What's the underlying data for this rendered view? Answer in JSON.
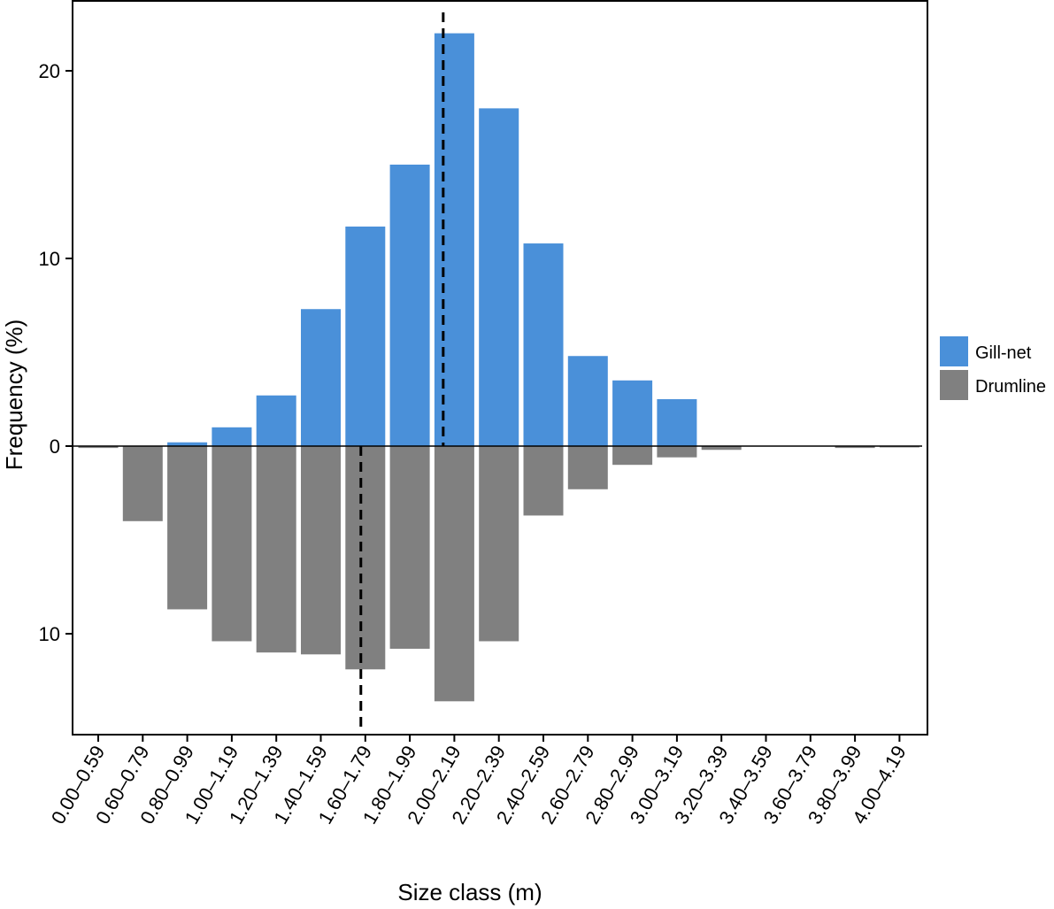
{
  "chart_data": {
    "type": "bar",
    "xlabel": "Size class (m)",
    "ylabel": "Frequency (%)",
    "categories": [
      "0.00–0.59",
      "0.60–0.79",
      "0.80–0.99",
      "1.00–1.19",
      "1.20–1.39",
      "1.40–1.59",
      "1.60–1.79",
      "1.80–1.99",
      "2.00–2.19",
      "2.20–2.39",
      "2.40–2.59",
      "2.60–2.79",
      "2.80–2.99",
      "3.00–3.19",
      "3.20–3.39",
      "3.40–3.59",
      "3.60–3.79",
      "3.80–3.99",
      "4.00–4.19"
    ],
    "series": [
      {
        "name": "Gill-net",
        "color": "#4a90d9",
        "direction": "up",
        "values": [
          0,
          0,
          0.2,
          1.0,
          2.7,
          7.3,
          11.7,
          15.0,
          22.0,
          18.0,
          10.8,
          4.8,
          3.5,
          2.5,
          0,
          0,
          0,
          0,
          0
        ]
      },
      {
        "name": "Drumline",
        "color": "#808080",
        "direction": "down",
        "values": [
          0.1,
          4.0,
          8.7,
          10.4,
          11.0,
          11.1,
          11.9,
          10.8,
          13.6,
          10.4,
          3.7,
          2.3,
          1.0,
          0.6,
          0.2,
          0,
          0,
          0.1,
          0.05
        ]
      }
    ],
    "y_ticks": [
      {
        "value": 20,
        "label": "20"
      },
      {
        "value": 10,
        "label": "10"
      },
      {
        "value": 0,
        "label": "0"
      },
      {
        "value": -10,
        "label": "10"
      }
    ],
    "ylim": [
      -15.3,
      23.2
    ],
    "mean_lines": [
      {
        "series": "Gill-net",
        "category_index": 7.75
      },
      {
        "series": "Drumline",
        "category_index": 5.9
      }
    ],
    "legend": {
      "position": "right",
      "entries": [
        "Gill-net",
        "Drumline"
      ]
    },
    "grid": false
  }
}
